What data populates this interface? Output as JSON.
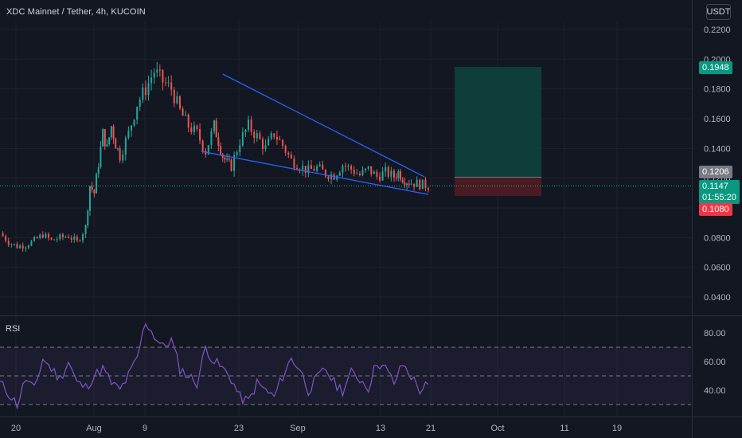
{
  "header": {
    "title": "XDC Mainnet / Tether, 4h, KUCOIN",
    "currency": "USDT"
  },
  "rsi_panel": {
    "label": "RSI"
  },
  "price_tags": {
    "take_profit": "0.1948",
    "entry": "0.1206",
    "last_price": "0.1147",
    "countdown": "01:55:20",
    "stop_loss": "0.1080"
  },
  "colors": {
    "background": "#131722",
    "up": "#26a69a",
    "down": "#ef5350",
    "trendline": "#2962ff",
    "rsi_line": "#7e57c2",
    "profit_zone": "#0f3d3a",
    "loss_zone": "#4a1b22"
  },
  "chart_data": [
    {
      "type": "candlestick",
      "title": "XDC Mainnet / Tether, 4h, KUCOIN",
      "x_ticks": [
        "20",
        "Aug",
        "9",
        "23",
        "Sep",
        "13",
        "21",
        "Oct",
        "11",
        "19"
      ],
      "y_ticks": [
        "0.2200",
        "0.2000",
        "0.1800",
        "0.1600",
        "0.1400",
        "0.1200",
        "0.1000",
        "0.0800",
        "0.0600",
        "0.0400"
      ],
      "ylim": [
        0.028,
        0.23
      ],
      "grid": true,
      "series": [
        {
          "name": "",
          "x": [
            0,
            2,
            4,
            6,
            8,
            10,
            12,
            14,
            16,
            18,
            20,
            21,
            22,
            23,
            24,
            25,
            26,
            27,
            28,
            30,
            32,
            34,
            36,
            38,
            40,
            42,
            44,
            46,
            48,
            50,
            51,
            52,
            53,
            54,
            56,
            58,
            60,
            62,
            64,
            66,
            68,
            70,
            72,
            74,
            76,
            78,
            80,
            82,
            84,
            86,
            88,
            90,
            92,
            93,
            94,
            95,
            96,
            98,
            100
          ],
          "close": [
            0.083,
            0.077,
            0.074,
            0.075,
            0.078,
            0.082,
            0.078,
            0.08,
            0.081,
            0.077,
            0.087,
            0.115,
            0.11,
            0.13,
            0.15,
            0.14,
            0.155,
            0.143,
            0.135,
            0.15,
            0.17,
            0.18,
            0.192,
            0.185,
            0.18,
            0.165,
            0.155,
            0.15,
            0.138,
            0.155,
            0.145,
            0.135,
            0.13,
            0.128,
            0.145,
            0.155,
            0.148,
            0.14,
            0.15,
            0.142,
            0.132,
            0.128,
            0.125,
            0.127,
            0.123,
            0.122,
            0.129,
            0.126,
            0.122,
            0.126,
            0.121,
            0.124,
            0.121,
            0.124,
            0.12,
            0.118,
            0.117,
            0.116,
            0.1147
          ]
        }
      ],
      "trendlines": [
        {
          "from": {
            "x": 52,
            "y": 0.19
          },
          "to": {
            "x": 99,
            "y": 0.121
          }
        },
        {
          "from": {
            "x": 47,
            "y": 0.138
          },
          "to": {
            "x": 100,
            "y": 0.109
          }
        }
      ],
      "long_position": {
        "x_start": 103,
        "x_end": 123,
        "entry": 0.1206,
        "take_profit": 0.1948,
        "stop_loss": 0.108
      },
      "last_price": 0.1147
    },
    {
      "type": "line",
      "title": "RSI",
      "y_ticks": [
        "80.00",
        "60.00",
        "40.00"
      ],
      "ylim": [
        22,
        92
      ],
      "levels": [
        70,
        50,
        30
      ],
      "series": [
        {
          "name": "",
          "x": [
            0,
            2,
            4,
            6,
            8,
            10,
            12,
            14,
            16,
            18,
            20,
            22,
            24,
            26,
            28,
            30,
            32,
            34,
            36,
            38,
            40,
            42,
            44,
            46,
            48,
            50,
            52,
            54,
            56,
            58,
            60,
            62,
            64,
            66,
            68,
            70,
            72,
            74,
            76,
            78,
            80,
            82,
            84,
            86,
            88,
            90,
            92,
            94,
            96,
            98,
            100
          ],
          "values": [
            45,
            38,
            30,
            48,
            40,
            62,
            55,
            48,
            60,
            45,
            42,
            50,
            55,
            45,
            40,
            50,
            62,
            88,
            78,
            70,
            75,
            55,
            50,
            45,
            70,
            60,
            55,
            48,
            35,
            32,
            45,
            40,
            35,
            50,
            62,
            55,
            40,
            48,
            55,
            45,
            40,
            52,
            48,
            42,
            60,
            55,
            45,
            58,
            50,
            40,
            44
          ]
        }
      ]
    }
  ]
}
